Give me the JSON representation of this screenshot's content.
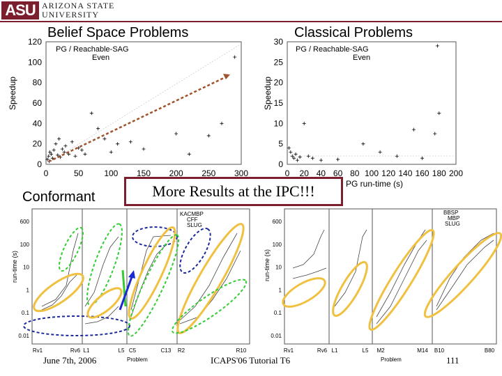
{
  "header": {
    "logo": "ASU",
    "university_line1": "Arizona State",
    "university_line2": "University"
  },
  "titles": {
    "belief": "Belief Space Problems",
    "classical": "Classical Problems",
    "conformant": "Conformant",
    "ipc": "More Results at the IPC!!!"
  },
  "footer": {
    "date": "June 7th, 2006",
    "venue": "ICAPS'06 Tutorial T6",
    "page": "111"
  },
  "chart_data": [
    {
      "type": "scatter",
      "title": "",
      "ylabel": "Speedup",
      "xlabel": "",
      "legend": [
        "PG / Reachable-SAG",
        "Even"
      ],
      "legend_position": "top-left",
      "xlim": [
        0,
        300
      ],
      "ylim": [
        0,
        120
      ],
      "xticks": [
        "0",
        "50",
        "100",
        "150",
        "200",
        "250",
        "300"
      ],
      "yticks": [
        "0",
        "20",
        "40",
        "60",
        "80",
        "100",
        "120"
      ],
      "points": [
        [
          2,
          5
        ],
        [
          4,
          8
        ],
        [
          5,
          3
        ],
        [
          6,
          12
        ],
        [
          8,
          10
        ],
        [
          10,
          6
        ],
        [
          12,
          14
        ],
        [
          15,
          20
        ],
        [
          18,
          9
        ],
        [
          20,
          25
        ],
        [
          22,
          7
        ],
        [
          25,
          15
        ],
        [
          28,
          12
        ],
        [
          30,
          18
        ],
        [
          35,
          10
        ],
        [
          40,
          22
        ],
        [
          45,
          8
        ],
        [
          50,
          16
        ],
        [
          55,
          14
        ],
        [
          60,
          10
        ],
        [
          70,
          50
        ],
        [
          80,
          35
        ],
        [
          90,
          25
        ],
        [
          100,
          12
        ],
        [
          110,
          20
        ],
        [
          130,
          22
        ],
        [
          150,
          15
        ],
        [
          200,
          30
        ],
        [
          220,
          10
        ],
        [
          250,
          28
        ],
        [
          270,
          40
        ],
        [
          290,
          105
        ]
      ]
    },
    {
      "type": "scatter",
      "title": "",
      "ylabel": "Speedup",
      "xlabel": "PG run-time (s)",
      "legend": [
        "PG / Reachable-SAG",
        "Even"
      ],
      "legend_position": "top-left",
      "xlim": [
        0,
        200
      ],
      "ylim": [
        0,
        30
      ],
      "xticks": [
        "0",
        "20",
        "40",
        "60",
        "80",
        "100",
        "120",
        "140",
        "160",
        "180",
        "200"
      ],
      "yticks": [
        "0",
        "5",
        "10",
        "15",
        "20",
        "25",
        "30"
      ],
      "points": [
        [
          2,
          4
        ],
        [
          4,
          3
        ],
        [
          6,
          2
        ],
        [
          8,
          1.5
        ],
        [
          10,
          2.5
        ],
        [
          12,
          1
        ],
        [
          15,
          1.8
        ],
        [
          20,
          10
        ],
        [
          25,
          2
        ],
        [
          30,
          1.5
        ],
        [
          40,
          1
        ],
        [
          60,
          1.2
        ],
        [
          90,
          5
        ],
        [
          110,
          3
        ],
        [
          130,
          2
        ],
        [
          150,
          8.5
        ],
        [
          160,
          1.5
        ],
        [
          180,
          12.5
        ],
        [
          178,
          29
        ],
        [
          175,
          7.5
        ]
      ]
    },
    {
      "type": "line",
      "title": "",
      "ylabel": "run-time (s)",
      "xlabel": "Problem",
      "legend": [
        "KACMBP",
        "CFF",
        "SLUG"
      ],
      "legend_position": "top",
      "yticks": [
        "600",
        "100",
        "10",
        "1",
        "0.1",
        "0.01"
      ],
      "xticks": [
        "Rv1",
        "Rv6",
        "L1",
        "L5",
        "C5",
        "C13",
        "R2",
        "R10"
      ]
    },
    {
      "type": "line",
      "title": "",
      "ylabel": "run-time (s)",
      "xlabel": "Problem",
      "legend": [
        "BBSP",
        "MBP",
        "SLUG"
      ],
      "legend_position": "top-right",
      "yticks": [
        "600",
        "100",
        "10",
        "1",
        "0.1",
        "0.01"
      ],
      "xticks": [
        "Rv1",
        "Rv6",
        "L1",
        "L5",
        "M2",
        "M14",
        "B10",
        "B80"
      ]
    }
  ]
}
